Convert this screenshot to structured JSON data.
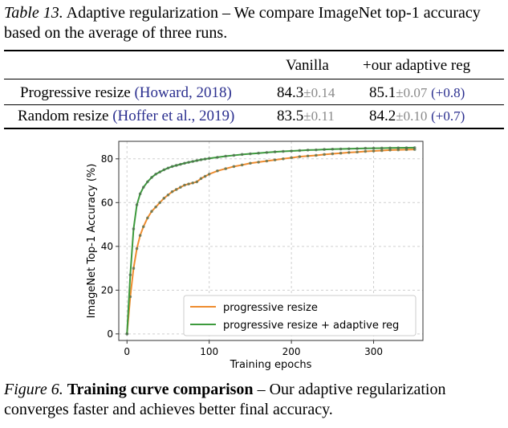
{
  "table": {
    "caption_label": "Table 13.",
    "caption_text": "Adaptive regularization – We compare ImageNet top-1 accuracy based on the average of three runs.",
    "columns": [
      "",
      "Vanilla",
      "+our adaptive reg"
    ],
    "rows": [
      {
        "method": "Progressive resize",
        "citation": "(Howard, 2018)",
        "vanilla": "84.3",
        "vanilla_pm": "±0.14",
        "adaptive": "85.1",
        "adaptive_pm": "±0.07",
        "adaptive_delta": "(+0.8)"
      },
      {
        "method": "Random resize",
        "citation": "(Hoffer et al., 2019)",
        "vanilla": "83.5",
        "vanilla_pm": "±0.11",
        "adaptive": "84.2",
        "adaptive_pm": "±0.10",
        "adaptive_delta": "(+0.7)"
      }
    ]
  },
  "chart_data": {
    "type": "line",
    "xlabel": "Training epochs",
    "ylabel": "ImageNet Top-1 Accuracy (%)",
    "xlim": [
      -10,
      360
    ],
    "ylim": [
      -3,
      88
    ],
    "xticks": [
      0,
      100,
      200,
      300
    ],
    "yticks": [
      0,
      20,
      40,
      60,
      80
    ],
    "grid": true,
    "legend_position": "lower-right",
    "series": [
      {
        "name": "progressive resize",
        "color": "#ee8c2f",
        "x": [
          0,
          4,
          8,
          12,
          16,
          20,
          25,
          30,
          35,
          40,
          45,
          50,
          55,
          60,
          65,
          70,
          75,
          80,
          85,
          90,
          95,
          100,
          110,
          120,
          130,
          140,
          150,
          160,
          170,
          180,
          190,
          200,
          210,
          220,
          230,
          240,
          250,
          260,
          270,
          280,
          290,
          300,
          310,
          320,
          330,
          340,
          350
        ],
        "y": [
          0,
          17,
          30,
          39,
          45,
          49,
          53,
          56,
          58,
          60,
          62,
          63.5,
          65,
          66,
          67,
          68,
          68.5,
          69,
          69.5,
          71,
          72,
          73,
          74.5,
          75.5,
          76.5,
          77.2,
          78,
          78.5,
          79,
          79.5,
          80,
          80.5,
          81,
          81.3,
          81.6,
          82,
          82.3,
          82.6,
          82.9,
          83.1,
          83.4,
          83.6,
          83.8,
          84,
          84.1,
          84.2,
          84.3
        ]
      },
      {
        "name": "progressive resize + adaptive reg",
        "color": "#3d9a3d",
        "x": [
          0,
          4,
          8,
          12,
          16,
          20,
          25,
          30,
          35,
          40,
          45,
          50,
          55,
          60,
          65,
          70,
          75,
          80,
          85,
          90,
          95,
          100,
          110,
          120,
          130,
          140,
          150,
          160,
          170,
          180,
          190,
          200,
          210,
          220,
          230,
          240,
          250,
          260,
          270,
          280,
          290,
          300,
          310,
          320,
          330,
          340,
          350
        ],
        "y": [
          0,
          27,
          48,
          59,
          64,
          67,
          69.5,
          71.5,
          73,
          74,
          75,
          75.8,
          76.5,
          77,
          77.5,
          78,
          78.4,
          78.8,
          79.2,
          79.6,
          79.9,
          80.2,
          80.7,
          81.2,
          81.6,
          82,
          82.3,
          82.6,
          82.9,
          83.2,
          83.4,
          83.6,
          83.8,
          84,
          84.1,
          84.3,
          84.4,
          84.5,
          84.6,
          84.7,
          84.8,
          84.85,
          84.9,
          84.95,
          85,
          85.05,
          85.1
        ]
      }
    ]
  },
  "figure": {
    "caption_label": "Figure 6.",
    "caption_bold": "Training curve comparison",
    "caption_text": "– Our adaptive regularization converges faster and achieves better final accuracy."
  }
}
